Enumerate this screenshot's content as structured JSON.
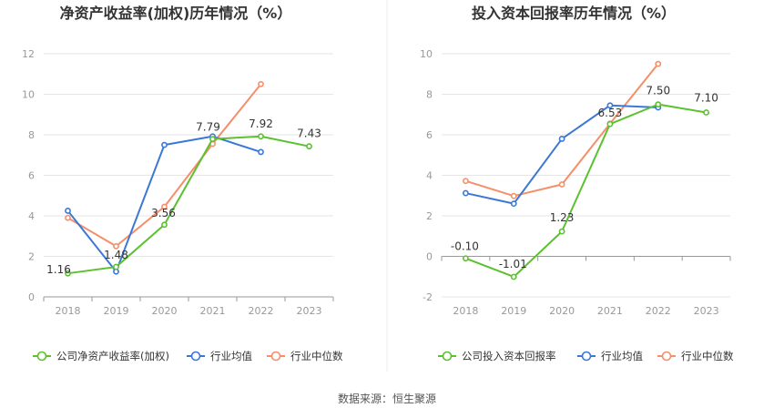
{
  "colors": {
    "company": "#5bc12f",
    "average": "#3a78d8",
    "median": "#f58e6a",
    "grid": "#e6e6e6",
    "axis": "#999999",
    "divider": "#eeeeee"
  },
  "source_text": "数据来源：恒生聚源",
  "chart_data": [
    {
      "type": "line",
      "title": "净资产收益率(加权)历年情况（%）",
      "xlabel": "",
      "ylabel": "",
      "categories": [
        "2018",
        "2019",
        "2020",
        "2021",
        "2022",
        "2023"
      ],
      "ylim": [
        0,
        12
      ],
      "yticks": [
        "0",
        "2",
        "4",
        "6",
        "8",
        "10",
        "12"
      ],
      "grid": true,
      "legend_position": "bottom",
      "series": [
        {
          "name": "公司净资产收益率(加权)",
          "color_key": "company",
          "values": [
            1.16,
            1.48,
            3.56,
            7.79,
            7.92,
            7.43
          ],
          "labels": [
            "1.16",
            "1.48",
            "3.56",
            "7.79",
            "7.92",
            "7.43"
          ]
        },
        {
          "name": "行业均值",
          "color_key": "average",
          "values": [
            4.25,
            1.25,
            7.5,
            7.92,
            7.15,
            null
          ]
        },
        {
          "name": "行业中位数",
          "color_key": "median",
          "values": [
            3.9,
            2.5,
            4.45,
            7.55,
            10.5,
            null
          ]
        }
      ]
    },
    {
      "type": "line",
      "title": "投入资本回报率历年情况（%）",
      "xlabel": "",
      "ylabel": "",
      "categories": [
        "2018",
        "2019",
        "2020",
        "2021",
        "2022",
        "2023"
      ],
      "ylim": [
        -2,
        10
      ],
      "yticks": [
        "-2",
        "0",
        "2",
        "4",
        "6",
        "8",
        "10"
      ],
      "grid": true,
      "legend_position": "bottom",
      "series": [
        {
          "name": "公司投入资本回报率",
          "color_key": "company",
          "values": [
            -0.1,
            -1.01,
            1.23,
            6.53,
            7.5,
            7.1
          ],
          "labels": [
            "-0.10",
            "-1.01",
            "1.23",
            "6.53",
            "7.50",
            "7.10"
          ]
        },
        {
          "name": "行业均值",
          "color_key": "average",
          "values": [
            3.12,
            2.6,
            5.8,
            7.45,
            7.35,
            null
          ]
        },
        {
          "name": "行业中位数",
          "color_key": "median",
          "values": [
            3.72,
            2.98,
            3.55,
            6.55,
            9.5,
            null
          ]
        }
      ]
    }
  ]
}
